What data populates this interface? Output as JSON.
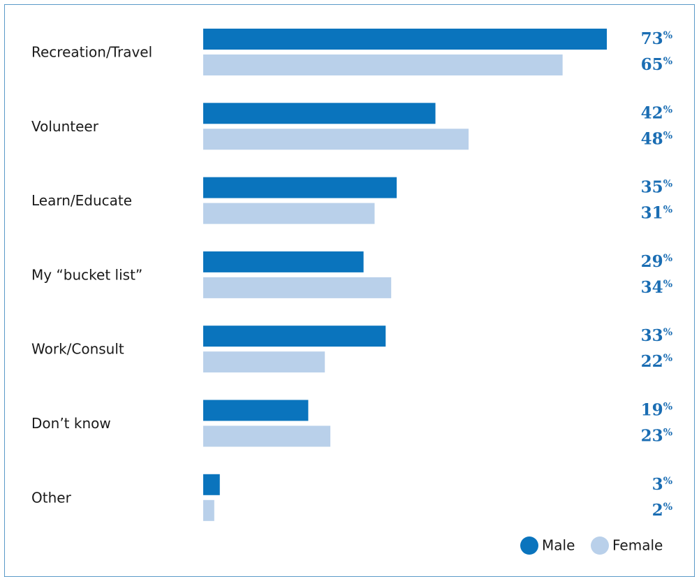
{
  "chart_data": {
    "type": "bar",
    "orientation": "horizontal",
    "categories": [
      "Recreation/Travel",
      "Volunteer",
      "Learn/Educate",
      "My “bucket list”",
      "Work/Consult",
      "Don’t know",
      "Other"
    ],
    "series": [
      {
        "name": "Male",
        "values": [
          73,
          42,
          35,
          29,
          33,
          19,
          3
        ]
      },
      {
        "name": "Female",
        "values": [
          65,
          48,
          31,
          34,
          22,
          23,
          2
        ]
      }
    ],
    "value_suffix": "%",
    "xlim": [
      0,
      73
    ],
    "grid": false,
    "legend_position": "bottom-right",
    "colors": {
      "Male": "#0a74bd",
      "Female": "#b9d0ea",
      "value_text": "#1a6db3"
    }
  }
}
